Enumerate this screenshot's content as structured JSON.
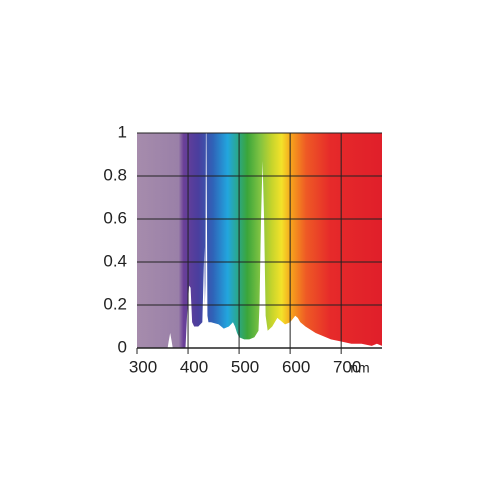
{
  "chart_data": {
    "type": "area",
    "x_label": "nm",
    "x": [
      300,
      360,
      362,
      365,
      368,
      370,
      395,
      398,
      402,
      405,
      408,
      412,
      420,
      428,
      430,
      432,
      433,
      434,
      435,
      436,
      437,
      438,
      440,
      445,
      460,
      470,
      480,
      488,
      492,
      496,
      500,
      510,
      520,
      530,
      538,
      540,
      543,
      546,
      549,
      552,
      556,
      565,
      575,
      580,
      590,
      600,
      610,
      615,
      620,
      630,
      650,
      680,
      700,
      720,
      740,
      760,
      770,
      780
    ],
    "values": [
      0,
      0,
      0.03,
      0.07,
      0.03,
      0,
      0,
      0.15,
      0.29,
      0.28,
      0.12,
      0.1,
      0.1,
      0.12,
      0.3,
      0.47,
      0.2,
      0.3,
      1,
      1,
      0.6,
      0.15,
      0.12,
      0.12,
      0.11,
      0.09,
      0.1,
      0.12,
      0.1,
      0.07,
      0.05,
      0.04,
      0.04,
      0.05,
      0.08,
      0.2,
      0.6,
      0.87,
      0.6,
      0.15,
      0.08,
      0.1,
      0.14,
      0.13,
      0.11,
      0.12,
      0.15,
      0.14,
      0.12,
      0.1,
      0.07,
      0.04,
      0.03,
      0.02,
      0.02,
      0.01,
      0.02,
      0.01
    ],
    "color": "#ffffff",
    "xlim": [
      300,
      780
    ],
    "xticks": [
      300,
      400,
      500,
      600,
      700
    ],
    "ylim": [
      0,
      1
    ],
    "yticks": [
      0,
      0.2,
      0.4,
      0.6,
      0.8,
      1
    ],
    "grid": true
  }
}
